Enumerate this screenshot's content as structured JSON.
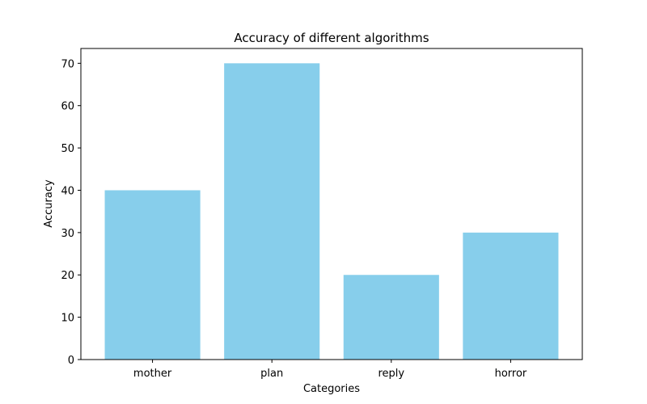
{
  "chart_data": {
    "type": "bar",
    "title": "Accuracy of different algorithms",
    "xlabel": "Categories",
    "ylabel": "Accuracy",
    "categories": [
      "mother",
      "plan",
      "reply",
      "horror"
    ],
    "values": [
      40,
      70,
      20,
      30
    ],
    "ylim": [
      0,
      73.5
    ],
    "yticks": [
      0,
      10,
      20,
      30,
      40,
      50,
      60,
      70
    ],
    "bar_color": "#87CEEB",
    "grid": false,
    "legend": "none"
  }
}
